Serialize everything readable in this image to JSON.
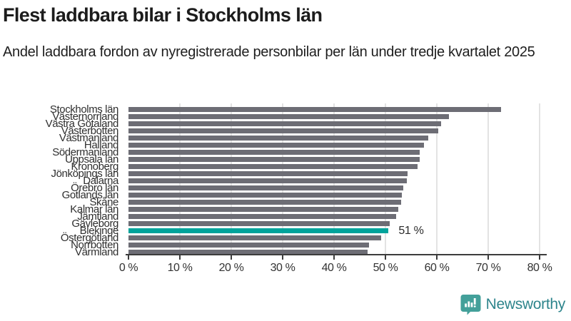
{
  "header": {
    "title": "Flest laddbara bilar i Stockholms län",
    "subtitle": "Andel laddbara fordon av nyregistrerade personbilar per län under tredje kvartalet 2025"
  },
  "chart_data": {
    "type": "bar",
    "orientation": "horizontal",
    "title": "Flest laddbara bilar i Stockholms län",
    "subtitle": "Andel laddbara fordon av nyregistrerade personbilar per län under tredje kvartalet 2025",
    "categories": [
      "Stockholms län",
      "Västernorrland",
      "Västra Götaland",
      "Västerbotten",
      "Västmanland",
      "Halland",
      "Södermanland",
      "Uppsala län",
      "Kronoberg",
      "Jönköpings län",
      "Dalarna",
      "Örebro län",
      "Gotlands län",
      "Skåne",
      "Kalmar län",
      "Jämtland",
      "Gävleborg",
      "Blekinge",
      "Östergötland",
      "Norrbotten",
      "Värmland"
    ],
    "values": [
      72.5,
      62.3,
      60.8,
      60.3,
      58.4,
      57.5,
      56.6,
      56.6,
      56.3,
      54.3,
      54.2,
      53.5,
      53.2,
      53.0,
      52.5,
      52.1,
      50.9,
      50.6,
      49.2,
      46.8,
      46.5
    ],
    "unit": "%",
    "xlim": [
      0,
      80
    ],
    "x_tick_values": [
      0,
      10,
      20,
      30,
      40,
      50,
      60,
      70,
      80
    ],
    "x_tick_labels": [
      "0 %",
      "10 %",
      "20 %",
      "30 %",
      "40 %",
      "50 %",
      "60 %",
      "70 %",
      "80 %"
    ],
    "grid": "vertical",
    "legend": "none",
    "highlight_index": 17,
    "highlight_category": "Blekinge",
    "highlight_annotation": "51 %",
    "bar_color": "#6d6d75",
    "highlight_color": "#00a39b"
  },
  "footer": {
    "brand": "Newsworthy",
    "logo_icon": "bar-chart-speech-bubble-icon",
    "icon_color": "#43a09a",
    "text_color": "#2e858c"
  }
}
